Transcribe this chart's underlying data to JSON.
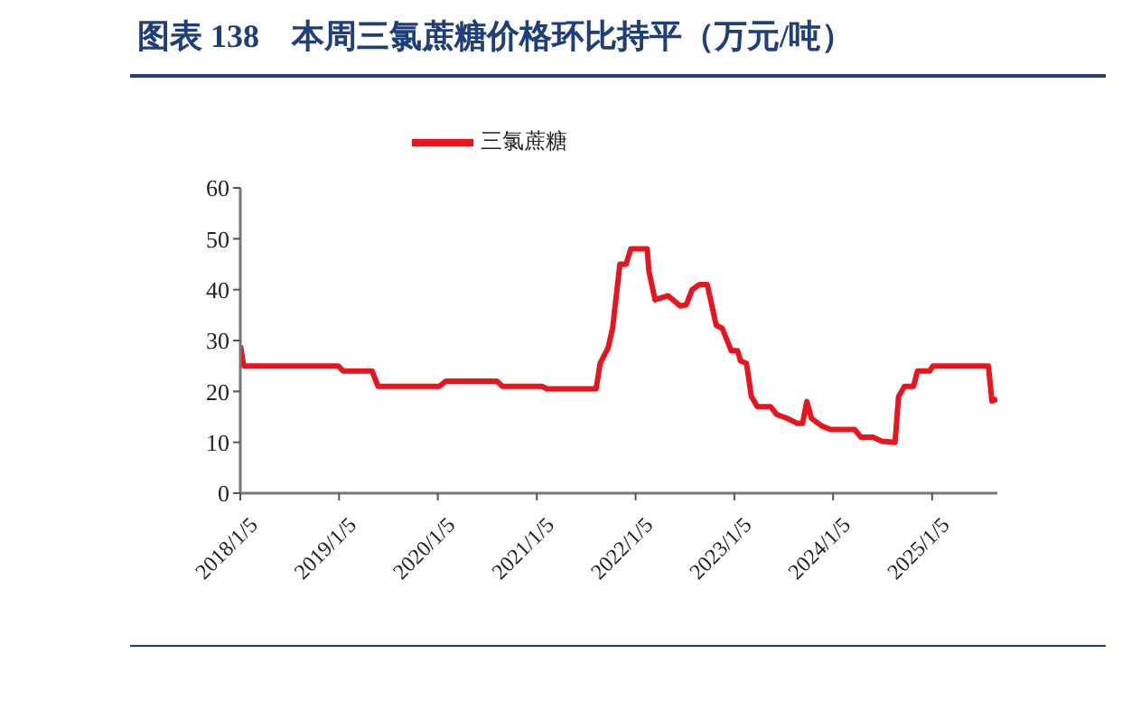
{
  "chart_data": {
    "type": "line",
    "title": "图表 138　本周三氯蔗糖价格环比持平（万元/吨）",
    "x": [
      "2018-01-05",
      "2018-01-18",
      "2019-01-02",
      "2019-01-20",
      "2019-05-07",
      "2019-05-29",
      "2020-01-11",
      "2020-02-03",
      "2020-08-11",
      "2020-08-31",
      "2021-01-24",
      "2021-02-11",
      "2021-08-12",
      "2021-08-27",
      "2021-09-25",
      "2021-10-12",
      "2021-11-08",
      "2021-12-01",
      "2021-12-18",
      "2022-02-01",
      "2022-02-17",
      "2022-02-23",
      "2022-03-18",
      "2022-05-05",
      "2022-06-19",
      "2022-07-11",
      "2022-08-02",
      "2022-08-29",
      "2022-09-27",
      "2022-10-30",
      "2022-11-21",
      "2022-12-25",
      "2023-01-17",
      "2023-01-28",
      "2023-02-19",
      "2023-03-09",
      "2023-03-31",
      "2023-05-19",
      "2023-06-10",
      "2023-07-20",
      "2023-08-27",
      "2023-09-14",
      "2023-09-30",
      "2023-10-17",
      "2023-11-24",
      "2023-12-27",
      "2024-03-25",
      "2024-04-17",
      "2024-05-31",
      "2024-07-03",
      "2024-08-21",
      "2024-09-03",
      "2024-09-25",
      "2024-10-28",
      "2024-11-12",
      "2024-12-27",
      "2025-01-08",
      "2025-08-01",
      "2025-08-14",
      "2025-09-03"
    ],
    "series": [
      {
        "name": "三氯蔗糖",
        "color": "#e8141e",
        "values": [
          29,
          25,
          25,
          24,
          24,
          21,
          21,
          22,
          22,
          21,
          21,
          20.5,
          20.5,
          25.5,
          28.5,
          32.4,
          45,
          45,
          48,
          48,
          48,
          43.7,
          38,
          38.8,
          36.8,
          37,
          40,
          41,
          41,
          33,
          32.4,
          28,
          28,
          26,
          25.5,
          19,
          17,
          17,
          15.5,
          14.7,
          13.7,
          13.7,
          18,
          14.7,
          13.2,
          12.5,
          12.5,
          11,
          11,
          10.2,
          10,
          19,
          21,
          21,
          24,
          24,
          25,
          25,
          18.1,
          18.5
        ]
      }
    ],
    "xlim": [
      "2018-01-05",
      "2025-09-03"
    ],
    "xticks": [
      {
        "value": "2018-01-05",
        "label": "2018/1/5"
      },
      {
        "value": "2019-01-05",
        "label": "2019/1/5"
      },
      {
        "value": "2020-01-05",
        "label": "2020/1/5"
      },
      {
        "value": "2021-01-05",
        "label": "2021/1/5"
      },
      {
        "value": "2022-01-05",
        "label": "2022/1/5"
      },
      {
        "value": "2023-01-05",
        "label": "2023/1/5"
      },
      {
        "value": "2024-01-05",
        "label": "2024/1/5"
      },
      {
        "value": "2025-01-05",
        "label": "2025/1/5"
      }
    ],
    "ylim": [
      0,
      60
    ],
    "yticks": [
      0,
      10,
      20,
      30,
      40,
      50,
      60
    ],
    "grid": false,
    "legend": "top",
    "marker": "none",
    "line_style": "solid"
  }
}
